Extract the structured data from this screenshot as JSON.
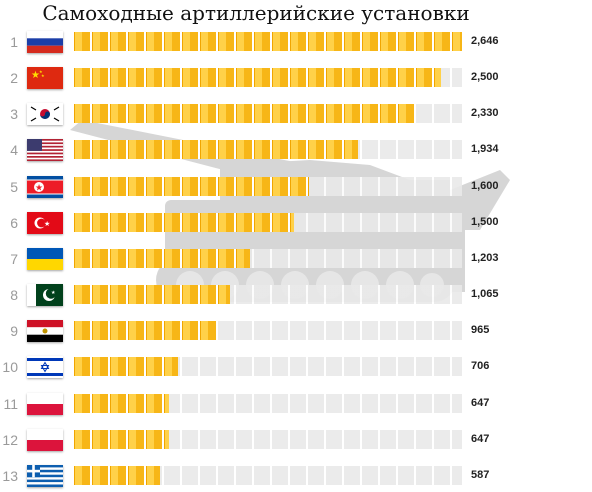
{
  "chart_data": {
    "type": "bar",
    "orientation": "horizontal",
    "title": "Самоходные артиллерийские установки",
    "xlim": [
      0,
      2646
    ],
    "categories": [
      {
        "rank": "1",
        "flag_icon": "russia-flag-icon",
        "label": "2,646",
        "value": 2646
      },
      {
        "rank": "2",
        "flag_icon": "china-flag-icon",
        "label": "2,500",
        "value": 2500
      },
      {
        "rank": "3",
        "flag_icon": "south-korea-flag-icon",
        "label": "2,330",
        "value": 2330
      },
      {
        "rank": "4",
        "flag_icon": "usa-flag-icon",
        "label": "1,934",
        "value": 1934
      },
      {
        "rank": "5",
        "flag_icon": "north-korea-flag-icon",
        "label": "1,600",
        "value": 1600
      },
      {
        "rank": "6",
        "flag_icon": "turkey-flag-icon",
        "label": "1,500",
        "value": 1500
      },
      {
        "rank": "7",
        "flag_icon": "ukraine-flag-icon",
        "label": "1,203",
        "value": 1203
      },
      {
        "rank": "8",
        "flag_icon": "pakistan-flag-icon",
        "label": "1,065",
        "value": 1065
      },
      {
        "rank": "9",
        "flag_icon": "egypt-flag-icon",
        "label": "965",
        "value": 965
      },
      {
        "rank": "10",
        "flag_icon": "israel-flag-icon",
        "label": "706",
        "value": 706
      },
      {
        "rank": "11",
        "flag_icon": "poland-flag-icon",
        "label": "647",
        "value": 647
      },
      {
        "rank": "12",
        "flag_icon": "poland-flag-icon",
        "label": "647",
        "value": 647
      },
      {
        "rank": "13",
        "flag_icon": "greece-flag-icon",
        "label": "587",
        "value": 587
      }
    ],
    "colors": {
      "bar": "#ffc82e",
      "bar_edge": "#f0a500",
      "track": "#e9e9e9",
      "tank_silhouette": "#d6d6d6"
    }
  }
}
